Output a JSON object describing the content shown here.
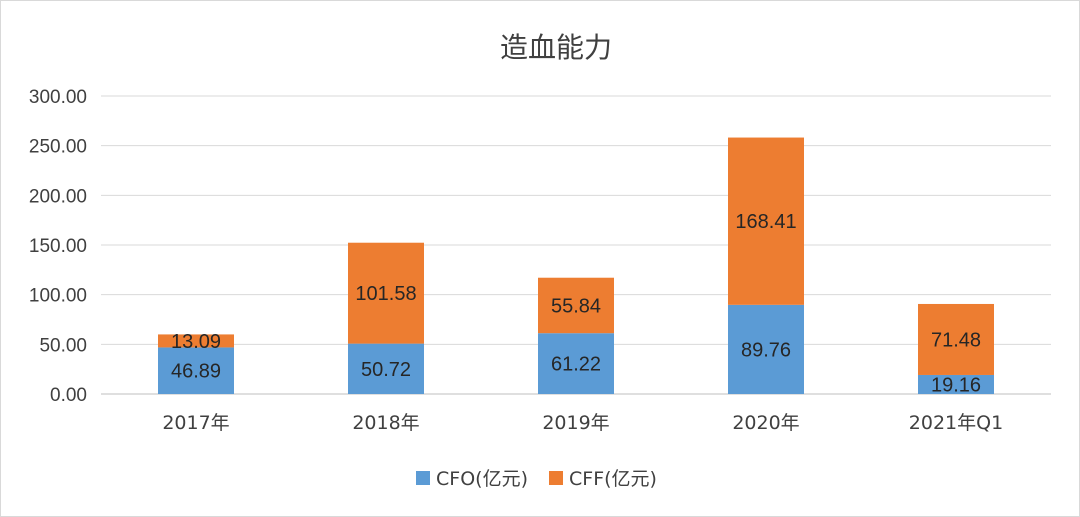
{
  "chart_data": {
    "type": "bar",
    "stacked": true,
    "title": "造血能力",
    "categories": [
      "2017年",
      "2018年",
      "2019年",
      "2020年",
      "2021年Q1"
    ],
    "series": [
      {
        "name": "CFO(亿元)",
        "color": "#5b9bd5",
        "values": [
          46.89,
          50.72,
          61.22,
          89.76,
          19.16
        ]
      },
      {
        "name": "CFF(亿元)",
        "color": "#ed7d31",
        "values": [
          13.09,
          101.58,
          55.84,
          168.41,
          71.48
        ]
      }
    ],
    "data_labels": [
      [
        "46.89",
        "50.72",
        "61.22",
        "89.76",
        "19.16"
      ],
      [
        "13.09",
        "101.58",
        "55.84",
        "168.41",
        "71.48"
      ]
    ],
    "ylim": [
      0,
      300
    ],
    "yticks": [
      0,
      50,
      100,
      150,
      200,
      250,
      300
    ],
    "ytick_labels": [
      "0.00",
      "50.00",
      "100.00",
      "150.00",
      "200.00",
      "250.00",
      "300.00"
    ],
    "grid": true,
    "legend_position": "bottom"
  }
}
